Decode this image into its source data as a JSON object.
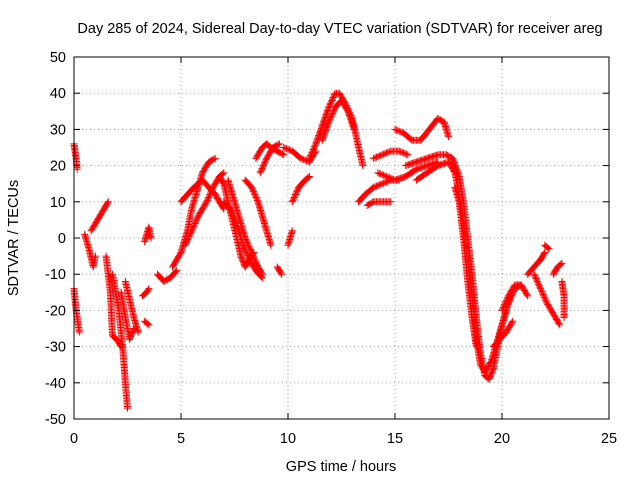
{
  "chart_data": {
    "type": "scatter",
    "title": "Day 285 of 2024, Sidereal Day-to-day VTEC variation (SDTVAR) for receiver areg",
    "xlabel": "GPS time / hours",
    "ylabel": "SDTVAR / TECUs",
    "xlim": [
      0,
      25
    ],
    "ylim": [
      -50,
      50
    ],
    "xticks": [
      "0",
      "5",
      "10",
      "15",
      "20",
      "25"
    ],
    "yticks": [
      "-50",
      "-40",
      "-30",
      "-20",
      "-10",
      "0",
      "10",
      "20",
      "30",
      "40",
      "50"
    ],
    "grid": true,
    "marker": "+",
    "color": "#ff0000",
    "series": [
      {
        "tracks": [
          [
            [
              0.0,
              26
            ],
            [
              0.1,
              22
            ],
            [
              0.15,
              19
            ]
          ],
          [
            [
              0.0,
              -14
            ],
            [
              0.1,
              -20
            ],
            [
              0.25,
              -26
            ]
          ],
          [
            [
              0.5,
              1
            ],
            [
              0.7,
              -3
            ],
            [
              0.9,
              -8
            ],
            [
              1.0,
              -5
            ]
          ],
          [
            [
              0.8,
              2
            ],
            [
              1.1,
              5
            ],
            [
              1.4,
              8
            ],
            [
              1.6,
              10
            ]
          ],
          [
            [
              1.5,
              -5
            ],
            [
              1.7,
              -15
            ],
            [
              1.8,
              -27
            ],
            [
              2.0,
              -28
            ],
            [
              2.2,
              -30
            ]
          ],
          [
            [
              1.8,
              -10
            ],
            [
              2.1,
              -20
            ],
            [
              2.3,
              -32
            ],
            [
              2.4,
              -40
            ],
            [
              2.5,
              -47
            ]
          ],
          [
            [
              2.4,
              -12
            ],
            [
              2.6,
              -17
            ],
            [
              2.8,
              -22
            ],
            [
              3.0,
              -26
            ]
          ],
          [
            [
              2.2,
              -15
            ],
            [
              2.4,
              -22
            ],
            [
              2.6,
              -28
            ],
            [
              2.8,
              -25
            ]
          ],
          [
            [
              3.2,
              -16
            ],
            [
              3.4,
              -15
            ],
            [
              3.5,
              -14
            ]
          ],
          [
            [
              3.3,
              -23
            ],
            [
              3.5,
              -24
            ]
          ],
          [
            [
              3.3,
              -1
            ],
            [
              3.4,
              1
            ],
            [
              3.5,
              3
            ],
            [
              3.6,
              0
            ]
          ],
          [
            [
              3.9,
              -10
            ],
            [
              4.2,
              -12
            ],
            [
              4.5,
              -11
            ],
            [
              4.8,
              -9
            ]
          ],
          [
            [
              4.6,
              -8
            ],
            [
              5.0,
              -4
            ],
            [
              5.3,
              2
            ],
            [
              5.5,
              8
            ],
            [
              5.8,
              14
            ],
            [
              6.0,
              18
            ],
            [
              6.3,
              21
            ],
            [
              6.6,
              22
            ]
          ],
          [
            [
              5.0,
              10
            ],
            [
              5.3,
              12
            ],
            [
              5.6,
              14
            ],
            [
              6.0,
              16
            ],
            [
              6.3,
              14
            ],
            [
              6.6,
              12
            ],
            [
              7.0,
              8
            ]
          ],
          [
            [
              5.2,
              -2
            ],
            [
              5.5,
              2
            ],
            [
              5.8,
              6
            ],
            [
              6.2,
              10
            ],
            [
              6.5,
              14
            ],
            [
              6.8,
              17
            ],
            [
              7.0,
              18
            ]
          ],
          [
            [
              6.8,
              17
            ],
            [
              7.0,
              15
            ],
            [
              7.2,
              10
            ],
            [
              7.4,
              5
            ],
            [
              7.6,
              0
            ],
            [
              7.8,
              -5
            ],
            [
              8.0,
              -8
            ],
            [
              8.2,
              -6
            ],
            [
              8.4,
              -4
            ]
          ],
          [
            [
              7.2,
              16
            ],
            [
              7.4,
              12
            ],
            [
              7.6,
              8
            ],
            [
              7.8,
              4
            ],
            [
              8.0,
              0
            ],
            [
              8.3,
              -4
            ],
            [
              8.6,
              -8
            ],
            [
              8.8,
              -10
            ]
          ],
          [
            [
              7.0,
              10
            ],
            [
              7.3,
              8
            ],
            [
              7.6,
              4
            ],
            [
              7.9,
              -2
            ],
            [
              8.2,
              -6
            ],
            [
              8.5,
              -9
            ],
            [
              8.8,
              -11
            ]
          ],
          [
            [
              8.0,
              16
            ],
            [
              8.3,
              14
            ],
            [
              8.6,
              10
            ],
            [
              8.8,
              6
            ],
            [
              9.0,
              2
            ],
            [
              9.2,
              -2
            ]
          ],
          [
            [
              8.5,
              22
            ],
            [
              8.8,
              25
            ],
            [
              9.0,
              26
            ],
            [
              9.2,
              25
            ],
            [
              9.5,
              24
            ],
            [
              9.8,
              23
            ]
          ],
          [
            [
              8.7,
              18
            ],
            [
              9.0,
              22
            ],
            [
              9.3,
              25
            ],
            [
              9.6,
              26
            ]
          ],
          [
            [
              9.5,
              -8
            ],
            [
              9.6,
              -9
            ],
            [
              9.7,
              -10
            ]
          ],
          [
            [
              10.0,
              -2
            ],
            [
              10.1,
              0
            ],
            [
              10.2,
              2
            ]
          ],
          [
            [
              9.8,
              25
            ],
            [
              10.2,
              24
            ],
            [
              10.6,
              22
            ],
            [
              11.0,
              21
            ],
            [
              11.3,
              24
            ]
          ],
          [
            [
              10.2,
              10
            ],
            [
              10.5,
              14
            ],
            [
              10.8,
              16
            ],
            [
              11.0,
              17
            ]
          ],
          [
            [
              11.0,
              22
            ],
            [
              11.3,
              26
            ],
            [
              11.6,
              31
            ],
            [
              11.9,
              36
            ],
            [
              12.2,
              40
            ],
            [
              12.4,
              40
            ],
            [
              12.7,
              37
            ],
            [
              13.0,
              33
            ],
            [
              13.3,
              25
            ],
            [
              13.5,
              20
            ]
          ],
          [
            [
              11.6,
              27
            ],
            [
              11.9,
              32
            ],
            [
              12.2,
              36
            ],
            [
              12.5,
              38
            ],
            [
              12.8,
              35
            ],
            [
              13.1,
              30
            ]
          ],
          [
            [
              13.3,
              10
            ],
            [
              13.6,
              12
            ],
            [
              14.0,
              14
            ],
            [
              14.4,
              15
            ],
            [
              14.8,
              16
            ],
            [
              15.2,
              16
            ]
          ],
          [
            [
              13.7,
              9
            ],
            [
              14.0,
              10
            ],
            [
              14.4,
              10
            ],
            [
              14.8,
              10
            ]
          ],
          [
            [
              14.0,
              22
            ],
            [
              14.4,
              23
            ],
            [
              14.8,
              24
            ],
            [
              15.2,
              24
            ],
            [
              15.6,
              23
            ]
          ],
          [
            [
              14.2,
              18
            ],
            [
              14.6,
              17
            ],
            [
              15.0,
              16
            ],
            [
              15.5,
              17
            ],
            [
              16.0,
              19
            ],
            [
              16.5,
              20
            ],
            [
              17.0,
              21
            ]
          ],
          [
            [
              15.0,
              30
            ],
            [
              15.4,
              29
            ],
            [
              15.8,
              27
            ],
            [
              16.2,
              27
            ],
            [
              16.6,
              30
            ],
            [
              17.0,
              33
            ],
            [
              17.3,
              32
            ],
            [
              17.5,
              28
            ]
          ],
          [
            [
              15.5,
              20
            ],
            [
              16.0,
              21
            ],
            [
              16.5,
              22
            ],
            [
              17.0,
              23
            ],
            [
              17.4,
              23
            ],
            [
              17.7,
              22
            ],
            [
              18.0,
              17
            ],
            [
              18.2,
              10
            ],
            [
              18.4,
              0
            ],
            [
              18.6,
              -10
            ],
            [
              18.8,
              -22
            ],
            [
              19.0,
              -32
            ],
            [
              19.2,
              -38
            ],
            [
              19.4,
              -39
            ],
            [
              19.6,
              -36
            ],
            [
              19.8,
              -30
            ],
            [
              20.0,
              -24
            ],
            [
              20.3,
              -18
            ],
            [
              20.6,
              -14
            ],
            [
              20.9,
              -13
            ]
          ],
          [
            [
              16.0,
              16
            ],
            [
              16.5,
              18
            ],
            [
              17.0,
              20
            ],
            [
              17.5,
              21
            ],
            [
              17.8,
              18
            ],
            [
              18.0,
              12
            ],
            [
              18.2,
              4
            ],
            [
              18.4,
              -6
            ],
            [
              18.6,
              -16
            ],
            [
              18.8,
              -28
            ],
            [
              19.0,
              -35
            ],
            [
              19.2,
              -37
            ],
            [
              19.5,
              -34
            ],
            [
              19.8,
              -28
            ],
            [
              20.1,
              -22
            ],
            [
              20.4,
              -16
            ]
          ],
          [
            [
              17.8,
              14
            ],
            [
              18.0,
              10
            ],
            [
              18.2,
              0
            ],
            [
              18.4,
              -12
            ],
            [
              18.6,
              -22
            ],
            [
              18.8,
              -30
            ]
          ],
          [
            [
              19.6,
              -30
            ],
            [
              19.9,
              -28
            ],
            [
              20.2,
              -26
            ],
            [
              20.5,
              -23
            ]
          ],
          [
            [
              20.0,
              -20
            ],
            [
              20.3,
              -16
            ],
            [
              20.6,
              -13
            ],
            [
              20.9,
              -13
            ],
            [
              21.2,
              -16
            ]
          ],
          [
            [
              21.2,
              -10
            ],
            [
              21.5,
              -8
            ],
            [
              21.8,
              -6
            ],
            [
              22.0,
              -4
            ]
          ],
          [
            [
              21.5,
              -10
            ],
            [
              21.8,
              -14
            ],
            [
              22.1,
              -18
            ],
            [
              22.4,
              -21
            ],
            [
              22.7,
              -24
            ]
          ],
          [
            [
              22.0,
              -2
            ],
            [
              22.2,
              -3
            ]
          ],
          [
            [
              22.4,
              -10
            ],
            [
              22.6,
              -8
            ],
            [
              22.8,
              -7
            ]
          ],
          [
            [
              22.8,
              -12
            ],
            [
              22.9,
              -16
            ],
            [
              22.9,
              -22
            ]
          ]
        ]
      }
    ]
  }
}
